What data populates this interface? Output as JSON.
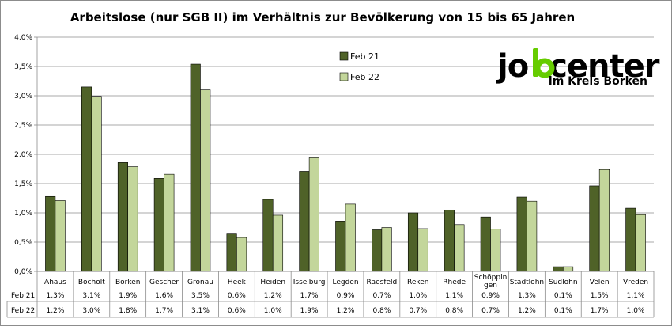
{
  "chart_data": {
    "type": "bar",
    "title": "Arbeitslose (nur SGB II) im Verhältnis zur Bevölkerung von 15 bis 65 Jahren",
    "categories": [
      "Ahaus",
      "Bocholt",
      "Borken",
      "Gescher",
      "Gronau",
      "Heek",
      "Heiden",
      "Isselburg",
      "Legden",
      "Raesfeld",
      "Reken",
      "Rhede",
      "Schöppin gen",
      "Stadtlohn",
      "Südlohn",
      "Velen",
      "Vreden"
    ],
    "series": [
      {
        "name": "Feb 21",
        "color": "#4f6228",
        "values": [
          1.28,
          3.15,
          1.86,
          1.59,
          3.54,
          0.64,
          1.23,
          1.71,
          0.86,
          0.71,
          1.0,
          1.05,
          0.93,
          1.27,
          0.08,
          1.46,
          1.08
        ],
        "labels": [
          "1,3%",
          "3,1%",
          "1,9%",
          "1,6%",
          "3,5%",
          "0,6%",
          "1,2%",
          "1,7%",
          "0,9%",
          "0,7%",
          "1,0%",
          "1,1%",
          "0,9%",
          "1,3%",
          "0,1%",
          "1,5%",
          "1,1%"
        ]
      },
      {
        "name": "Feb 22",
        "color": "#c3d69b",
        "values": [
          1.21,
          2.99,
          1.79,
          1.66,
          3.1,
          0.58,
          0.96,
          1.94,
          1.15,
          0.75,
          0.73,
          0.8,
          0.72,
          1.2,
          0.08,
          1.74,
          0.97
        ],
        "labels": [
          "1,2%",
          "3,0%",
          "1,8%",
          "1,7%",
          "3,1%",
          "0,6%",
          "1,0%",
          "1,9%",
          "1,2%",
          "0,8%",
          "0,7%",
          "0,8%",
          "0,7%",
          "1,2%",
          "0,1%",
          "1,7%",
          "1,0%"
        ]
      }
    ],
    "ylim": [
      0,
      4.0
    ],
    "yticks": [
      0,
      0.5,
      1.0,
      1.5,
      2.0,
      2.5,
      3.0,
      3.5,
      4.0
    ],
    "ytick_labels": [
      "0,0%",
      "0,5%",
      "1,0%",
      "1,5%",
      "2,0%",
      "2,5%",
      "3,0%",
      "3,5%",
      "4,0%"
    ],
    "grid": true,
    "legend": "top-center",
    "data_table": true
  },
  "logo": {
    "text_start": "jo",
    "text_end": "center",
    "subtitle": "im Kreis Borken",
    "accent_color": "#66cc00"
  }
}
